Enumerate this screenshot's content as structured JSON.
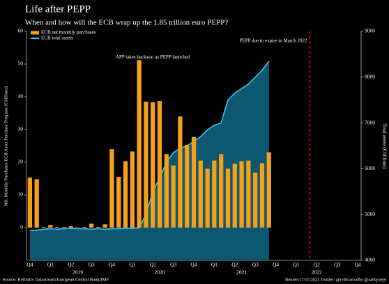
{
  "chart_data": {
    "type": "bar",
    "title": "Life after PEPP",
    "subtitle": "When and how will the ECB wrap up the 1.85 trillion euro PEPP?",
    "ylabel": "NB: Monthly Purchases ECB Asset Purchase Program (€ billions)",
    "y2label": "Total assets (€ billions)",
    "categories": [
      "Q4",
      null,
      null,
      "Q1",
      null,
      null,
      "Q2",
      null,
      null,
      "Q3",
      null,
      null,
      "Q4",
      null,
      null,
      "Q1",
      null,
      null,
      "Q2",
      null,
      null,
      "Q3",
      null,
      null,
      "Q4",
      null,
      null,
      "Q1",
      null,
      null,
      "Q2",
      null,
      null,
      "Q3",
      null,
      null,
      "Q4",
      null,
      null,
      "Q1",
      null,
      null,
      "Q2",
      null,
      null,
      "Q3",
      null,
      null,
      "Q4"
    ],
    "year_labels": [
      null,
      null,
      null,
      null,
      null,
      null,
      null,
      "2019",
      null,
      null,
      null,
      null,
      null,
      null,
      null,
      null,
      null,
      null,
      null,
      "2020",
      null,
      null,
      null,
      null,
      null,
      null,
      null,
      null,
      null,
      null,
      null,
      "2021",
      null,
      null,
      null,
      null,
      null,
      null,
      null,
      null,
      null,
      null,
      "2022",
      null,
      null,
      null,
      null,
      null,
      null
    ],
    "series": [
      {
        "name": "ECB net monthly purchases",
        "type": "bar",
        "color": "#f5a01a",
        "values": [
          15.3,
          14.8,
          0.2,
          0.8,
          0.2,
          0.2,
          0.4,
          0.1,
          0.2,
          1.2,
          0.2,
          1.0,
          24,
          15.5,
          20.3,
          23.3,
          51.2,
          38.5,
          38.3,
          38.7,
          22.5,
          19,
          34,
          25.3,
          27.7,
          20.5,
          18,
          20.5,
          22.5,
          18,
          19.5,
          20.3,
          20.5,
          16.8,
          19.7,
          23,
          null,
          null,
          null,
          null,
          null,
          null,
          null,
          null,
          null,
          null,
          null,
          null,
          null
        ]
      },
      {
        "name": "ECB total assets",
        "type": "area",
        "axis": "y2",
        "color": "#3ec5ee",
        "fill": "#0d5870",
        "values": [
          4650,
          4660,
          4680,
          4690,
          4680,
          4690,
          4700,
          4690,
          4690,
          4680,
          4690,
          4680,
          4690,
          4690,
          4700,
          4700,
          4710,
          5000,
          5500,
          5800,
          6150,
          6350,
          6450,
          6500,
          6600,
          6700,
          6850,
          6950,
          7000,
          7500,
          7650,
          7750,
          7850,
          8000,
          8150,
          8350,
          null,
          null,
          null,
          null,
          null,
          null,
          null,
          null,
          null,
          null,
          null,
          null,
          null
        ]
      }
    ],
    "ylim": [
      -10,
      60
    ],
    "yticks": [
      0,
      10,
      20,
      30,
      40,
      50,
      60
    ],
    "y2lim": [
      4000,
      9000
    ],
    "y2ticks": [
      4000,
      5000,
      6000,
      7000,
      8000,
      9000
    ],
    "legend": "upper left",
    "annotations": [
      {
        "text": "APP takes backseat as PEPP launched",
        "category": 18,
        "y": 52
      },
      {
        "text": "PEPP due to expire in March 2022",
        "category": 41,
        "y": 57,
        "line": true,
        "color": "#e0141e"
      }
    ],
    "source": "Source: Refinitiv Datastream/European Central Bank/IMF",
    "credit": "Reuters17/11/2021 Twitter: @rvikcarvalho @sarkyseye"
  }
}
